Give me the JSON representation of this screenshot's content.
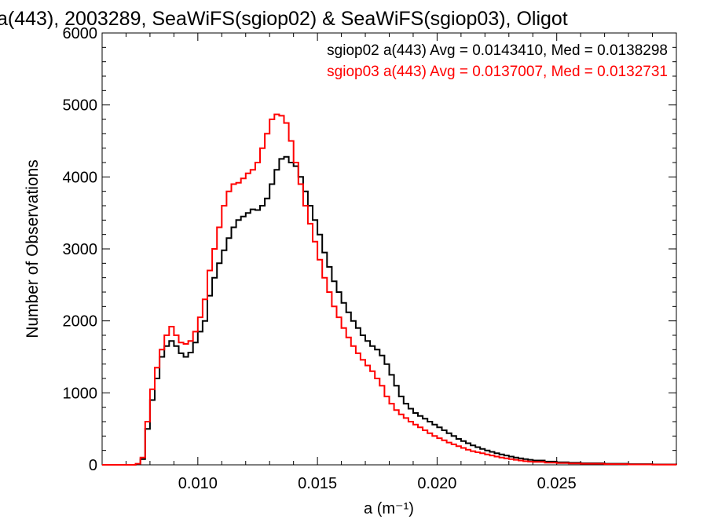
{
  "chart_data": {
    "type": "line",
    "title": "a(443), 2003289, SeaWiFS(sgiop02) & SeaWiFS(sgiop03), Oligot",
    "xlabel": "a (m⁻¹)",
    "ylabel": "Number of Observations",
    "xlim": [
      0.006,
      0.03
    ],
    "ylim": [
      0,
      6000
    ],
    "xticks": [
      0.01,
      0.015,
      0.02,
      0.025
    ],
    "xtick_labels": [
      "0.010",
      "0.015",
      "0.020",
      "0.025"
    ],
    "yticks": [
      0,
      1000,
      2000,
      3000,
      4000,
      5000,
      6000
    ],
    "ytick_labels": [
      "0",
      "1000",
      "2000",
      "3000",
      "4000",
      "5000",
      "6000"
    ],
    "step": true,
    "series": [
      {
        "name": "sgiop02 a(443) Avg = 0.0143410, Med = 0.0138298",
        "color": "#000000",
        "points": [
          [
            0.007,
            0
          ],
          [
            0.0074,
            10
          ],
          [
            0.0076,
            80
          ],
          [
            0.0078,
            500
          ],
          [
            0.008,
            900
          ],
          [
            0.0082,
            1200
          ],
          [
            0.0084,
            1500
          ],
          [
            0.0086,
            1650
          ],
          [
            0.0088,
            1720
          ],
          [
            0.009,
            1650
          ],
          [
            0.0092,
            1550
          ],
          [
            0.0094,
            1500
          ],
          [
            0.0096,
            1560
          ],
          [
            0.0098,
            1700
          ],
          [
            0.01,
            1850
          ],
          [
            0.0102,
            2000
          ],
          [
            0.0104,
            2350
          ],
          [
            0.0106,
            2600
          ],
          [
            0.0108,
            2800
          ],
          [
            0.011,
            2980
          ],
          [
            0.0112,
            3150
          ],
          [
            0.0114,
            3300
          ],
          [
            0.0116,
            3400
          ],
          [
            0.0118,
            3450
          ],
          [
            0.012,
            3500
          ],
          [
            0.0122,
            3550
          ],
          [
            0.0124,
            3540
          ],
          [
            0.0126,
            3600
          ],
          [
            0.0128,
            3700
          ],
          [
            0.013,
            3900
          ],
          [
            0.0132,
            4100
          ],
          [
            0.0134,
            4250
          ],
          [
            0.0136,
            4280
          ],
          [
            0.0138,
            4200
          ],
          [
            0.014,
            4150
          ],
          [
            0.0142,
            4000
          ],
          [
            0.0144,
            3800
          ],
          [
            0.0146,
            3600
          ],
          [
            0.0148,
            3400
          ],
          [
            0.015,
            3200
          ],
          [
            0.0152,
            2950
          ],
          [
            0.0154,
            2750
          ],
          [
            0.0156,
            2550
          ],
          [
            0.0158,
            2400
          ],
          [
            0.016,
            2250
          ],
          [
            0.0162,
            2120
          ],
          [
            0.0164,
            2000
          ],
          [
            0.0166,
            1900
          ],
          [
            0.0168,
            1800
          ],
          [
            0.017,
            1720
          ],
          [
            0.0172,
            1650
          ],
          [
            0.0174,
            1600
          ],
          [
            0.0176,
            1520
          ],
          [
            0.0178,
            1400
          ],
          [
            0.018,
            1250
          ],
          [
            0.0182,
            1100
          ],
          [
            0.0184,
            950
          ],
          [
            0.0186,
            850
          ],
          [
            0.0188,
            780
          ],
          [
            0.019,
            720
          ],
          [
            0.0192,
            680
          ],
          [
            0.0194,
            640
          ],
          [
            0.0196,
            600
          ],
          [
            0.0198,
            560
          ],
          [
            0.02,
            520
          ],
          [
            0.0202,
            480
          ],
          [
            0.0204,
            440
          ],
          [
            0.0206,
            400
          ],
          [
            0.0208,
            360
          ],
          [
            0.021,
            330
          ],
          [
            0.0212,
            300
          ],
          [
            0.0214,
            270
          ],
          [
            0.0216,
            245
          ],
          [
            0.0218,
            220
          ],
          [
            0.022,
            200
          ],
          [
            0.0222,
            180
          ],
          [
            0.0224,
            160
          ],
          [
            0.0226,
            145
          ],
          [
            0.0228,
            130
          ],
          [
            0.023,
            115
          ],
          [
            0.0232,
            100
          ],
          [
            0.0234,
            90
          ],
          [
            0.0236,
            80
          ],
          [
            0.0238,
            70
          ],
          [
            0.024,
            60
          ],
          [
            0.0245,
            45
          ],
          [
            0.025,
            35
          ],
          [
            0.0255,
            28
          ],
          [
            0.026,
            22
          ],
          [
            0.027,
            15
          ],
          [
            0.028,
            10
          ],
          [
            0.029,
            5
          ],
          [
            0.03,
            3
          ]
        ]
      },
      {
        "name": "sgiop03 a(443) Avg = 0.0137007, Med = 0.0132731",
        "color": "#ff0000",
        "points": [
          [
            0.007,
            0
          ],
          [
            0.0074,
            15
          ],
          [
            0.0076,
            100
          ],
          [
            0.0078,
            600
          ],
          [
            0.008,
            1050
          ],
          [
            0.0082,
            1350
          ],
          [
            0.0084,
            1600
          ],
          [
            0.0086,
            1800
          ],
          [
            0.0088,
            1920
          ],
          [
            0.009,
            1800
          ],
          [
            0.0092,
            1700
          ],
          [
            0.0094,
            1680
          ],
          [
            0.0096,
            1720
          ],
          [
            0.0098,
            1850
          ],
          [
            0.01,
            2050
          ],
          [
            0.0102,
            2300
          ],
          [
            0.0104,
            2700
          ],
          [
            0.0106,
            3000
          ],
          [
            0.0108,
            3300
          ],
          [
            0.011,
            3600
          ],
          [
            0.0112,
            3800
          ],
          [
            0.0114,
            3900
          ],
          [
            0.0116,
            3920
          ],
          [
            0.0118,
            3980
          ],
          [
            0.012,
            4050
          ],
          [
            0.0122,
            4100
          ],
          [
            0.0124,
            4200
          ],
          [
            0.0126,
            4400
          ],
          [
            0.0128,
            4600
          ],
          [
            0.013,
            4800
          ],
          [
            0.0132,
            4870
          ],
          [
            0.0134,
            4850
          ],
          [
            0.0136,
            4750
          ],
          [
            0.0138,
            4500
          ],
          [
            0.014,
            4200
          ],
          [
            0.0142,
            3900
          ],
          [
            0.0144,
            3600
          ],
          [
            0.0146,
            3350
          ],
          [
            0.0148,
            3100
          ],
          [
            0.015,
            2850
          ],
          [
            0.0152,
            2600
          ],
          [
            0.0154,
            2400
          ],
          [
            0.0156,
            2200
          ],
          [
            0.0158,
            2050
          ],
          [
            0.016,
            1900
          ],
          [
            0.0162,
            1770
          ],
          [
            0.0164,
            1650
          ],
          [
            0.0166,
            1550
          ],
          [
            0.0168,
            1460
          ],
          [
            0.017,
            1380
          ],
          [
            0.0172,
            1300
          ],
          [
            0.0174,
            1200
          ],
          [
            0.0176,
            1100
          ],
          [
            0.0178,
            950
          ],
          [
            0.018,
            850
          ],
          [
            0.0182,
            760
          ],
          [
            0.0184,
            700
          ],
          [
            0.0186,
            650
          ],
          [
            0.0188,
            600
          ],
          [
            0.019,
            560
          ],
          [
            0.0192,
            520
          ],
          [
            0.0194,
            480
          ],
          [
            0.0196,
            440
          ],
          [
            0.0198,
            400
          ],
          [
            0.02,
            370
          ],
          [
            0.0202,
            340
          ],
          [
            0.0204,
            310
          ],
          [
            0.0206,
            285
          ],
          [
            0.0208,
            260
          ],
          [
            0.021,
            235
          ],
          [
            0.0212,
            210
          ],
          [
            0.0214,
            190
          ],
          [
            0.0216,
            175
          ],
          [
            0.0218,
            160
          ],
          [
            0.022,
            145
          ],
          [
            0.0222,
            130
          ],
          [
            0.0224,
            115
          ],
          [
            0.0226,
            100
          ],
          [
            0.0228,
            90
          ],
          [
            0.023,
            80
          ],
          [
            0.0232,
            70
          ],
          [
            0.0234,
            60
          ],
          [
            0.0236,
            50
          ],
          [
            0.0238,
            45
          ],
          [
            0.024,
            40
          ],
          [
            0.0245,
            30
          ],
          [
            0.025,
            25
          ],
          [
            0.0255,
            20
          ],
          [
            0.026,
            15
          ],
          [
            0.027,
            10
          ],
          [
            0.028,
            6
          ],
          [
            0.029,
            3
          ],
          [
            0.03,
            2
          ]
        ]
      }
    ]
  }
}
